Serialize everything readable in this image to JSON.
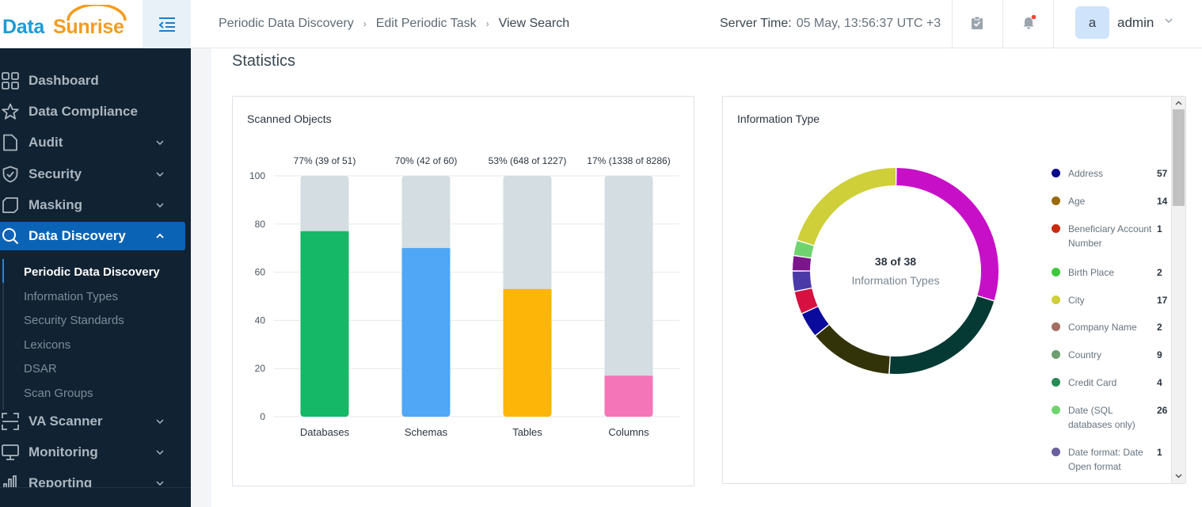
{
  "app": {
    "logo_part1": "Data",
    "logo_part2": "Sunrise"
  },
  "breadcrumb": [
    "Periodic Data Discovery",
    "Edit Periodic Task",
    "View Search"
  ],
  "server_time": {
    "label": "Server Time:",
    "value": "05 May, 13:56:37  UTC +3"
  },
  "user": {
    "avatar_letter": "a",
    "name": "admin"
  },
  "sidebar": {
    "items": [
      {
        "label": "Dashboard",
        "icon": "grid-icon",
        "chevron": false
      },
      {
        "label": "Data Compliance",
        "icon": "star-icon",
        "chevron": false
      },
      {
        "label": "Audit",
        "icon": "document-icon",
        "chevron": true
      },
      {
        "label": "Security",
        "icon": "shield-icon",
        "chevron": true
      },
      {
        "label": "Masking",
        "icon": "mask-icon",
        "chevron": true
      },
      {
        "label": "Data Discovery",
        "icon": "search-icon",
        "chevron": true,
        "active": true
      }
    ],
    "sub_items": [
      {
        "label": "Periodic Data Discovery",
        "active": true
      },
      {
        "label": "Information Types"
      },
      {
        "label": "Security Standards"
      },
      {
        "label": "Lexicons"
      },
      {
        "label": "DSAR"
      },
      {
        "label": "Scan Groups"
      }
    ],
    "items_after": [
      {
        "label": "VA Scanner",
        "icon": "scanner-icon",
        "chevron": true
      },
      {
        "label": "Monitoring",
        "icon": "monitor-icon",
        "chevron": true
      },
      {
        "label": "Reporting",
        "icon": "chart-icon",
        "chevron": true
      }
    ]
  },
  "page": {
    "title": "Statistics"
  },
  "scanned_objects": {
    "title": "Scanned Objects"
  },
  "information_type": {
    "title": "Information Type",
    "center_count": "38 of 38",
    "center_label": "Information Types",
    "legend": [
      {
        "name": "Address",
        "value": "57",
        "color": "#0a0a8c"
      },
      {
        "name": "Age",
        "value": "14",
        "color": "#9a6b0d"
      },
      {
        "name": "Beneficiary Account Number",
        "value": "1",
        "color": "#cc2a0d"
      },
      {
        "name": "Birth Place",
        "value": "2",
        "color": "#3cc93c"
      },
      {
        "name": "City",
        "value": "17",
        "color": "#cfcf3a"
      },
      {
        "name": "Company Name",
        "value": "2",
        "color": "#a06e62"
      },
      {
        "name": "Country",
        "value": "9",
        "color": "#6e9e6e"
      },
      {
        "name": "Credit Card",
        "value": "4",
        "color": "#278a57"
      },
      {
        "name": "Date (SQL databases only)",
        "value": "26",
        "color": "#6fd46f"
      },
      {
        "name": "Date format: Date Open format",
        "value": "1",
        "color": "#6a5e9e"
      }
    ],
    "donut_segments": [
      {
        "color": "#c80fc8",
        "share": 0.296
      },
      {
        "color": "#043a33",
        "share": 0.213
      },
      {
        "color": "#33330a",
        "share": 0.132
      },
      {
        "color": "#0a0a9c",
        "share": 0.04
      },
      {
        "color": "#d61040",
        "share": 0.036
      },
      {
        "color": "#4a3aa8",
        "share": 0.032
      },
      {
        "color": "#7a178a",
        "share": 0.024
      },
      {
        "color": "#6fd46f",
        "share": 0.024
      },
      {
        "color": "#cfcf3a",
        "share": 0.203
      }
    ]
  },
  "chart_data": {
    "type": "bar",
    "title": "Scanned Objects",
    "categories": [
      "Databases",
      "Schemas",
      "Tables",
      "Columns"
    ],
    "values": [
      77,
      70,
      53,
      17
    ],
    "value_labels": [
      "77% (39 of 51)",
      "70% (42 of 60)",
      "53% (648 of 1227)",
      "17% (1338 of 8286)"
    ],
    "colors": [
      "#14b866",
      "#4fa7f5",
      "#fdb607",
      "#f476b9"
    ],
    "background_color": "#d3dde2",
    "yticks": [
      0,
      20,
      40,
      60,
      80,
      100
    ],
    "ylim": [
      0,
      100
    ],
    "grid": true,
    "xlabel": "",
    "ylabel": ""
  }
}
